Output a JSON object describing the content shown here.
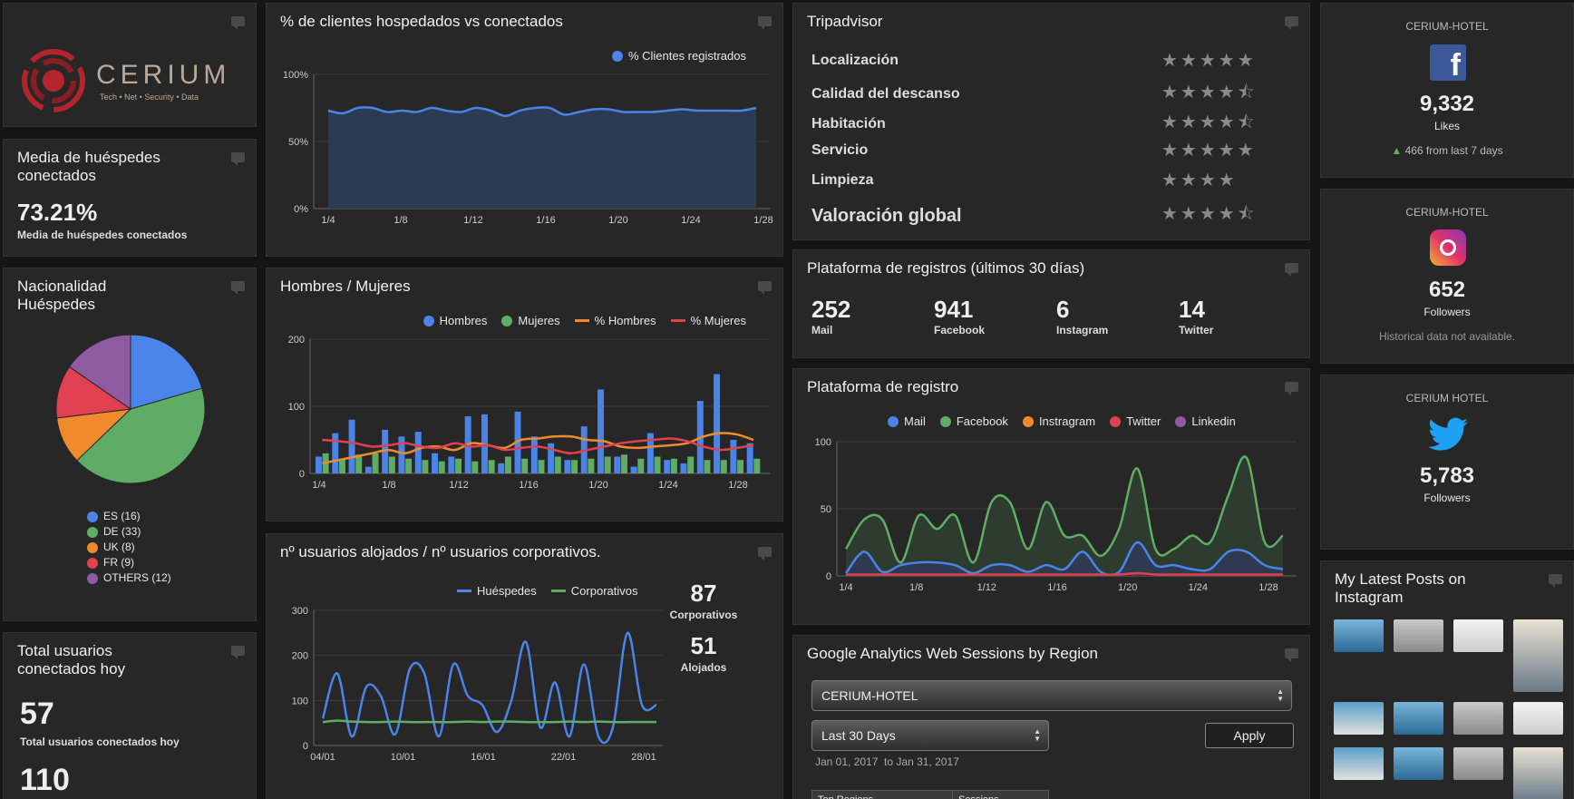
{
  "logo": {
    "brand": "CERIUM",
    "tagline": "Tech • Net • Security • Data"
  },
  "media": {
    "title": "Media de huéspedes conectados",
    "value": "73.21%",
    "caption": "Media de huéspedes conectados"
  },
  "nationality": {
    "title": "Nacionalidad Huéspedes",
    "legend": [
      {
        "label": "ES (16)",
        "value": 16,
        "color": "#4a84e8"
      },
      {
        "label": "DE (33)",
        "value": 33,
        "color": "#5fad65"
      },
      {
        "label": "UK (8)",
        "value": 8,
        "color": "#ef8b2c"
      },
      {
        "label": "FR (9)",
        "value": 9,
        "color": "#e04050"
      },
      {
        "label": "OTHERS (12)",
        "value": 12,
        "color": "#8f5ba0"
      }
    ]
  },
  "total": {
    "title": "Total usuarios conectados hoy",
    "value": "57",
    "caption": "Total usuarios conectados hoy",
    "value2": "110"
  },
  "chart1": {
    "title": "% de clientes hospedados vs conectados",
    "legend": "% Clientes registrados"
  },
  "chart2": {
    "title": "Hombres / Mujeres",
    "legend": [
      "Hombres",
      "Mujeres",
      "% Hombres",
      "% Mujeres"
    ]
  },
  "chart3": {
    "title": "nº usuarios alojados / nº usuarios corporativos.",
    "legend": [
      "Huéspedes",
      "Corporativos"
    ],
    "corp_value": "87",
    "corp_label": "Corporativos",
    "aloj_value": "51",
    "aloj_label": "Alojados"
  },
  "tripadvisor": {
    "title": "Tripadvisor",
    "rows": [
      {
        "label": "Localización",
        "rating": 5
      },
      {
        "label": "Calidad del descanso",
        "rating": 4.5
      },
      {
        "label": "Habitación",
        "rating": 4.5
      },
      {
        "label": "Servicio",
        "rating": 5
      },
      {
        "label": "Limpieza",
        "rating": 4
      },
      {
        "label": "Valoración global",
        "rating": 4.5
      }
    ]
  },
  "plataformas": {
    "title": "Plataforma de registros (últimos 30 días)",
    "items": [
      {
        "value": "252",
        "label": "Mail"
      },
      {
        "value": "941",
        "label": "Facebook"
      },
      {
        "value": "6",
        "label": "Instagram"
      },
      {
        "value": "14",
        "label": "Twitter"
      }
    ]
  },
  "chart4": {
    "title": "Plataforma de registro",
    "legend": [
      "Mail",
      "Facebook",
      "Instragram",
      "Twitter",
      "Linkedin"
    ]
  },
  "analytics": {
    "title": "Google Analytics Web Sessions by Region",
    "account": "CERIUM-HOTEL",
    "range": "Last 30 Days",
    "apply": "Apply",
    "dates": "Jan 01, 2017  to Jan 31, 2017",
    "table_headers": [
      "Top Regions",
      "Sessions"
    ]
  },
  "social": {
    "facebook": {
      "account": "CERIUM-HOTEL",
      "value": "9,332",
      "label": "Likes",
      "trend": "466 from last 7 days"
    },
    "instagram": {
      "account": "CERIUM-HOTEL",
      "value": "652",
      "label": "Followers",
      "note": "Historical data not available."
    },
    "twitter": {
      "account": "CERIUM HOTEL",
      "value": "5,783",
      "label": "Followers"
    }
  },
  "insta_posts": {
    "title": "My Latest Posts on Instagram"
  },
  "colors": {
    "blue": "#4a84e8",
    "green": "#5fad65",
    "orange": "#ef8b2c",
    "red": "#e04050",
    "purple": "#8f5ba0"
  },
  "chart_data": [
    {
      "type": "area",
      "title": "% de clientes hospedados vs conectados",
      "x_ticks": [
        "1/4",
        "1/8",
        "1/12",
        "1/16",
        "1/20",
        "1/24",
        "1/28"
      ],
      "y_ticks": [
        "0%",
        "50%",
        "100%"
      ],
      "ylim": [
        0,
        100
      ],
      "series": [
        {
          "name": "% Clientes registrados",
          "values": [
            73,
            71,
            75,
            75,
            72,
            73,
            72,
            75,
            73,
            72,
            75,
            73,
            69,
            73,
            75,
            75,
            70,
            72,
            74,
            74,
            72,
            72,
            72,
            73,
            74,
            73,
            73,
            73,
            73,
            75
          ]
        }
      ]
    },
    {
      "type": "bar",
      "title": "Hombres / Mujeres",
      "x_ticks": [
        "1/4",
        "1/8",
        "1/12",
        "1/16",
        "1/20",
        "1/24",
        "1/28"
      ],
      "y_ticks": [
        "0",
        "100",
        "200"
      ],
      "ylim": [
        0,
        200
      ],
      "series": [
        {
          "name": "Hombres",
          "values": [
            25,
            60,
            80,
            10,
            65,
            55,
            62,
            30,
            25,
            85,
            88,
            15,
            92,
            55,
            45,
            20,
            70,
            125,
            25,
            10,
            60,
            20,
            15,
            108,
            148,
            50,
            45
          ]
        },
        {
          "name": "Mujeres",
          "values": [
            30,
            22,
            28,
            30,
            25,
            22,
            20,
            18,
            22,
            18,
            20,
            25,
            22,
            20,
            25,
            20,
            22,
            25,
            28,
            22,
            25,
            22,
            25,
            20,
            20,
            20,
            22
          ]
        },
        {
          "name": "% Hombres",
          "values": [
            15,
            20,
            25,
            30,
            35,
            30,
            38,
            40,
            35,
            45,
            42,
            38,
            50,
            52,
            55,
            55,
            50,
            48,
            40,
            38,
            40,
            42,
            45,
            55,
            60,
            58,
            50
          ]
        },
        {
          "name": "% Mujeres",
          "values": [
            50,
            48,
            45,
            40,
            42,
            45,
            40,
            38,
            45,
            40,
            42,
            35,
            38,
            40,
            35,
            30,
            35,
            40,
            45,
            48,
            50,
            52,
            48,
            40,
            35,
            38,
            42
          ]
        }
      ]
    },
    {
      "type": "line",
      "title": "nº usuarios alojados / nº usuarios corporativos.",
      "x_ticks": [
        "04/01",
        "10/01",
        "16/01",
        "22/01",
        "28/01"
      ],
      "y_ticks": [
        "0",
        "100",
        "200",
        "300"
      ],
      "ylim": [
        0,
        300
      ],
      "series": [
        {
          "name": "Huéspedes",
          "values": [
            60,
            160,
            20,
            130,
            110,
            25,
            170,
            160,
            20,
            180,
            110,
            90,
            30,
            100,
            230,
            40,
            140,
            20,
            180,
            20,
            40,
            250,
            90,
            90
          ]
        },
        {
          "name": "Corporativos",
          "values": [
            52,
            55,
            53,
            52,
            52,
            53,
            52,
            52,
            52,
            52,
            53,
            52,
            53,
            53,
            52,
            52,
            52,
            53,
            52,
            53,
            52,
            52,
            52,
            52
          ]
        }
      ]
    },
    {
      "type": "area",
      "title": "Plataforma de registro",
      "x_ticks": [
        "1/4",
        "1/8",
        "1/12",
        "1/16",
        "1/20",
        "1/24",
        "1/28"
      ],
      "y_ticks": [
        "0",
        "50",
        "100"
      ],
      "ylim": [
        0,
        100
      ],
      "series": [
        {
          "name": "Facebook",
          "values": [
            20,
            42,
            42,
            10,
            45,
            35,
            45,
            10,
            55,
            55,
            20,
            55,
            30,
            30,
            15,
            35,
            80,
            20,
            20,
            30,
            25,
            60,
            88,
            25,
            30
          ]
        },
        {
          "name": "Mail",
          "values": [
            2,
            18,
            3,
            8,
            10,
            10,
            8,
            2,
            8,
            8,
            3,
            8,
            5,
            18,
            3,
            3,
            25,
            8,
            8,
            5,
            5,
            18,
            18,
            8,
            5
          ]
        },
        {
          "name": "Twitter",
          "values": [
            1,
            1,
            1,
            1,
            1,
            1,
            1,
            1,
            1,
            1,
            1,
            1,
            1,
            1,
            1,
            1,
            2,
            1,
            1,
            1,
            1,
            1,
            1,
            1,
            1
          ]
        }
      ]
    },
    {
      "type": "pie",
      "title": "Nacionalidad Huéspedes",
      "categories": [
        "ES",
        "DE",
        "UK",
        "FR",
        "OTHERS"
      ],
      "values": [
        16,
        33,
        8,
        9,
        12
      ]
    }
  ]
}
